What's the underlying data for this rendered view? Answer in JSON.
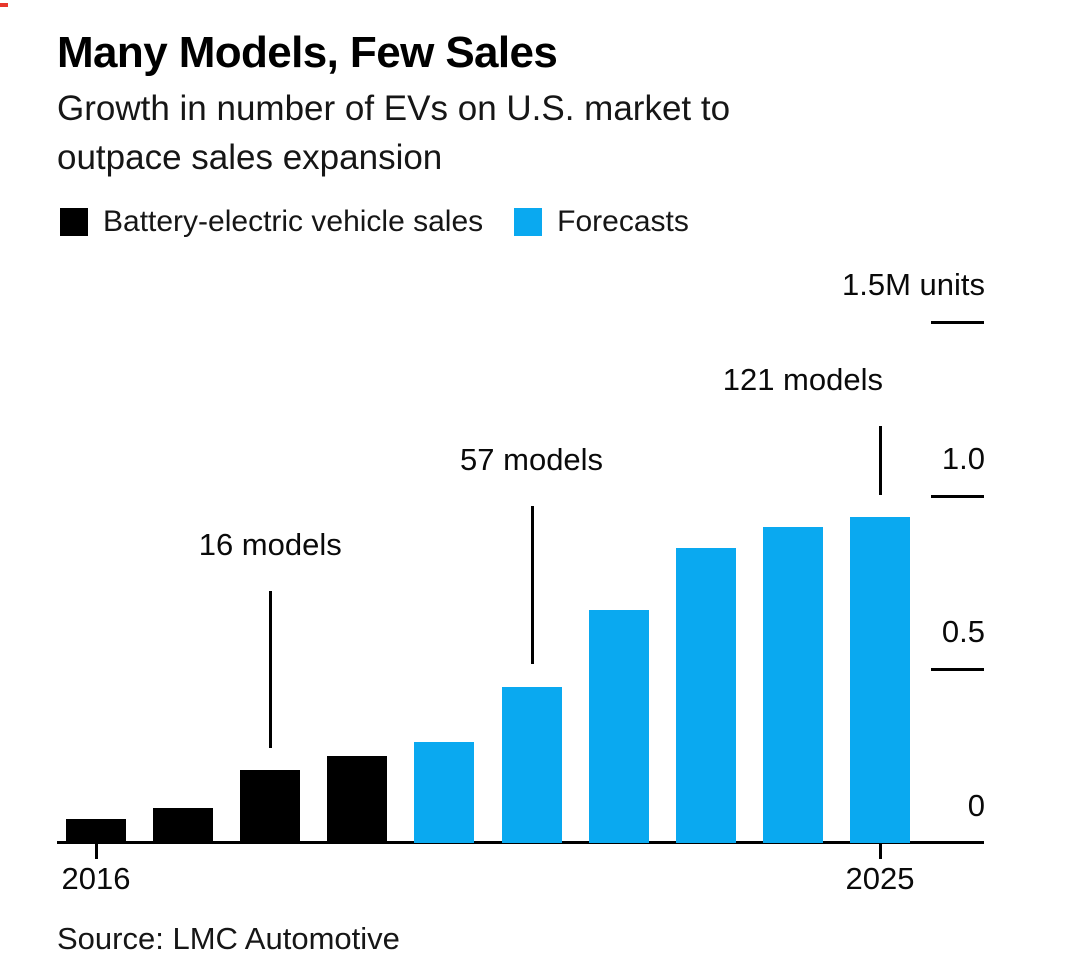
{
  "page": {
    "background": "#ffffff"
  },
  "header": {
    "title": "Many Models, Few Sales",
    "subtitle": "Growth in number of EVs on U.S. market to outpace sales expansion",
    "subtitle_lines": [
      "Growth in number of EVs on U.S. market to",
      "outpace sales expansion"
    ]
  },
  "source": {
    "label": "Source: LMC Automotive"
  },
  "colors": {
    "actual_bar": "#000000",
    "forecast_bar": "#0aa9f0",
    "axis": "#000000",
    "text": "#161616"
  },
  "chart_data": {
    "type": "bar",
    "title": "Many Models, Few Sales",
    "subtitle": "Growth in number of EVs on U.S. market to outpace sales expansion",
    "unit": "M units",
    "categories": [
      2016,
      2017,
      2018,
      2019,
      2020,
      2021,
      2022,
      2023,
      2024,
      2025
    ],
    "series": [
      {
        "name": "Battery-electric vehicle sales",
        "color": "#000000",
        "years": [
          2016,
          2017,
          2018,
          2019
        ],
        "values": [
          0.07,
          0.1,
          0.21,
          0.25
        ]
      },
      {
        "name": "Forecasts",
        "color": "#0aa9f0",
        "years": [
          2020,
          2021,
          2022,
          2023,
          2024,
          2025
        ],
        "values": [
          0.29,
          0.45,
          0.67,
          0.85,
          0.91,
          0.94
        ]
      }
    ],
    "ylim": [
      0,
      1.5
    ],
    "yticks": [
      {
        "label": "1.5M units",
        "value": 1.5,
        "tick": true
      },
      {
        "label": "1.0",
        "value": 1.0,
        "tick": true
      },
      {
        "label": "0.5",
        "value": 0.5,
        "tick": true
      },
      {
        "label": "0",
        "value": 0,
        "tick": false
      }
    ],
    "xticks": [
      {
        "label": "2016",
        "year": 2016
      },
      {
        "label": "2025",
        "year": 2025
      }
    ],
    "annotations": [
      {
        "text": "16 models",
        "year": 2018
      },
      {
        "text": "57 models",
        "year": 2021
      },
      {
        "text": "121 models",
        "year": 2025
      }
    ],
    "legend_position": "top-left",
    "axis_side": "right",
    "grid": false
  }
}
